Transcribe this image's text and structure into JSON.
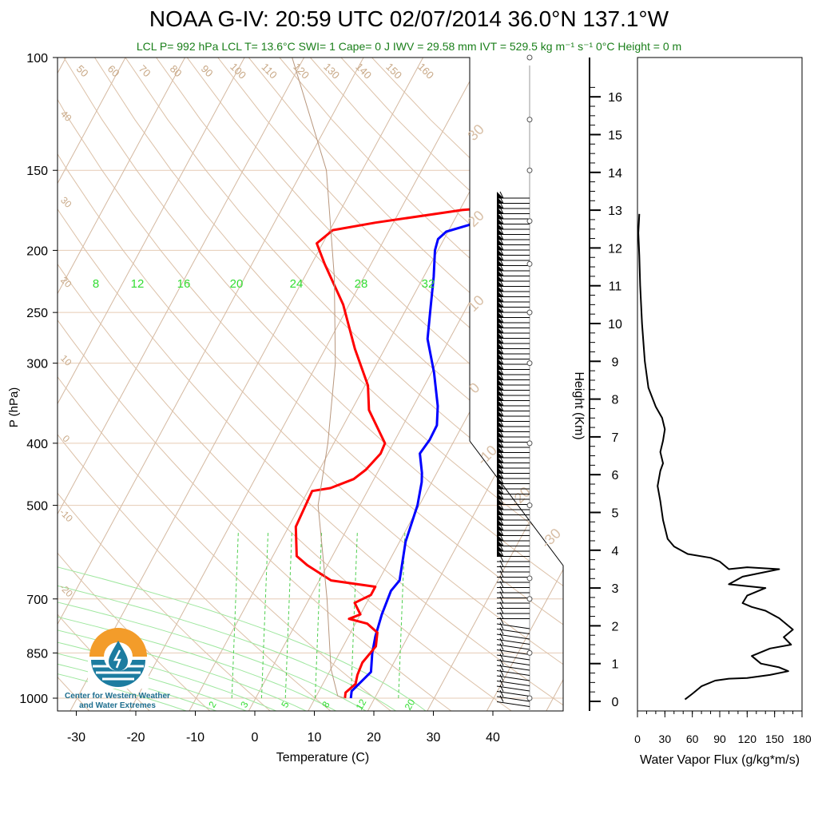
{
  "chart_data": [
    {
      "type": "line",
      "title": "NOAA G-IV: 20:59 UTC 02/07/2014  36.0°N 137.1°W",
      "subtitle": "LCL P= 992 hPa  LCL T= 13.6°C  SWI= 1  Cape= 0 J  IWV = 29.58 mm  IVT = 529.5 kg m⁻¹ s⁻¹  0°C Height = 0 m",
      "xlabel": "Temperature (C)",
      "ylabel": "P (hPa)",
      "xlim": [
        -35,
        47
      ],
      "ylim": [
        1050,
        100
      ],
      "x_ticks": [
        "-30",
        "-20",
        "-10",
        "0",
        "10",
        "20",
        "30",
        "40"
      ],
      "y_ticks": [
        "100",
        "150",
        "200",
        "250",
        "300",
        "400",
        "500",
        "700",
        "850",
        "1000"
      ],
      "mixing_ratio_labels_top": [
        "8",
        "12",
        "16",
        "20",
        "24",
        "28",
        "32"
      ],
      "mixing_ratio_labels_bottom": [
        "2",
        "3",
        "5",
        "8",
        "12",
        "20"
      ],
      "dry_adiabat_labels_top": [
        "50",
        "60",
        "70",
        "80",
        "90",
        "100",
        "110",
        "120",
        "130",
        "140",
        "150",
        "160"
      ],
      "dry_adiabat_labels_left": [
        "40",
        "30",
        "20",
        "10",
        "0",
        "-10",
        "-20"
      ],
      "isotherm_labels": [
        "30",
        "20",
        "10",
        "0",
        "-10",
        "-20",
        "-30"
      ],
      "series": [
        {
          "name": "temperature",
          "color": "#0000ff",
          "points": [
            [
              16,
              1000
            ],
            [
              15.5,
              975
            ],
            [
              17,
              910
            ],
            [
              15.5,
              850
            ],
            [
              14.5,
              800
            ],
            [
              13.6,
              740
            ],
            [
              13,
              680
            ],
            [
              13.5,
              655
            ],
            [
              11,
              570
            ],
            [
              9.7,
              500
            ],
            [
              8.3,
              460
            ],
            [
              7.5,
              445
            ],
            [
              5.4,
              415
            ],
            [
              5.8,
              395
            ],
            [
              5.7,
              375
            ],
            [
              4.1,
              350
            ],
            [
              0.4,
              310
            ],
            [
              -3.7,
              275
            ],
            [
              -6.1,
              245
            ],
            [
              -8.3,
              220
            ],
            [
              -10.5,
              200
            ],
            [
              -11,
              192
            ],
            [
              -10.3,
              187
            ],
            [
              -6,
              181
            ],
            [
              5.3,
              173
            ],
            [
              19,
              169
            ]
          ]
        },
        {
          "name": "dewpoint",
          "color": "#ff0000",
          "points": [
            [
              15,
              1000
            ],
            [
              14.6,
              980
            ],
            [
              15.5,
              950
            ],
            [
              15,
              920
            ],
            [
              14.7,
              880
            ],
            [
              15.5,
              830
            ],
            [
              14.5,
              790
            ],
            [
              12,
              765
            ],
            [
              8.5,
              752
            ],
            [
              10,
              740
            ],
            [
              8,
              710
            ],
            [
              10,
              690
            ],
            [
              10,
              670
            ],
            [
              2,
              655
            ],
            [
              -3.4,
              620
            ],
            [
              -6,
              600
            ],
            [
              -8.8,
              540
            ],
            [
              -9.3,
              475
            ],
            [
              -6.5,
              470
            ],
            [
              -3.4,
              455
            ],
            [
              -2.2,
              440
            ],
            [
              -1.2,
              415
            ],
            [
              -1.4,
              400
            ],
            [
              -7.1,
              355
            ],
            [
              -9.5,
              325
            ],
            [
              -15,
              285
            ],
            [
              -21,
              243
            ],
            [
              -27.8,
              210
            ],
            [
              -31,
              195
            ],
            [
              -29.5,
              186
            ],
            [
              -23,
              181
            ],
            [
              -9.6,
              173
            ],
            [
              -0.3,
              170
            ]
          ]
        },
        {
          "name": "parcel",
          "color": "#b8977e",
          "points": [
            [
              15,
              1000
            ],
            [
              13.6,
              992
            ],
            [
              10,
              900
            ],
            [
              3,
              700
            ],
            [
              -7,
              500
            ],
            [
              -11,
              400
            ],
            [
              -17,
              300
            ],
            [
              -25,
              220
            ],
            [
              -36,
              150
            ],
            [
              -52,
              100
            ]
          ]
        }
      ],
      "wind_barbs_on_side": true
    },
    {
      "type": "line",
      "xlabel": "Water Vapor Flux (g/kg*m/s)",
      "ylabel": "Height (Km)",
      "xlim": [
        0,
        180
      ],
      "ylim": [
        -0.3,
        16.5
      ],
      "x_ticks": [
        "0",
        "30",
        "60",
        "90",
        "120",
        "150",
        "180"
      ],
      "y_ticks": [
        "0",
        "1",
        "2",
        "3",
        "4",
        "5",
        "6",
        "7",
        "8",
        "9",
        "10",
        "11",
        "12",
        "13",
        "14",
        "15",
        "16"
      ],
      "series": [
        {
          "name": "water vapor flux",
          "color": "#000000",
          "points": [
            [
              52,
              0.05
            ],
            [
              60,
              0.2
            ],
            [
              70,
              0.4
            ],
            [
              85,
              0.55
            ],
            [
              100,
              0.6
            ],
            [
              120,
              0.62
            ],
            [
              145,
              0.7
            ],
            [
              165,
              0.8
            ],
            [
              155,
              0.9
            ],
            [
              135,
              1.0
            ],
            [
              125,
              1.2
            ],
            [
              145,
              1.4
            ],
            [
              168,
              1.5
            ],
            [
              160,
              1.7
            ],
            [
              170,
              1.9
            ],
            [
              155,
              2.2
            ],
            [
              140,
              2.4
            ],
            [
              125,
              2.5
            ],
            [
              115,
              2.6
            ],
            [
              120,
              2.8
            ],
            [
              140,
              3.0
            ],
            [
              100,
              3.1
            ],
            [
              115,
              3.3
            ],
            [
              155,
              3.5
            ],
            [
              120,
              3.55
            ],
            [
              100,
              3.5
            ],
            [
              90,
              3.7
            ],
            [
              80,
              3.8
            ],
            [
              55,
              3.9
            ],
            [
              40,
              4.1
            ],
            [
              33,
              4.3
            ],
            [
              28,
              4.8
            ],
            [
              25,
              5.3
            ],
            [
              22,
              5.7
            ],
            [
              25,
              6.1
            ],
            [
              28,
              6.3
            ],
            [
              25,
              6.6
            ],
            [
              28,
              6.9
            ],
            [
              30,
              7.2
            ],
            [
              27,
              7.5
            ],
            [
              20,
              7.8
            ],
            [
              12,
              8.3
            ],
            [
              8,
              9.0
            ],
            [
              5,
              10
            ],
            [
              3,
              11
            ],
            [
              2,
              11.8
            ],
            [
              1,
              12.4
            ],
            [
              2,
              12.9
            ]
          ]
        }
      ]
    }
  ],
  "logo": {
    "org_line1": "Center for Western Weather",
    "org_line2": "and Water Extremes",
    "colors": {
      "orange": "#f39c2a",
      "teal": "#1c7ca0"
    }
  }
}
